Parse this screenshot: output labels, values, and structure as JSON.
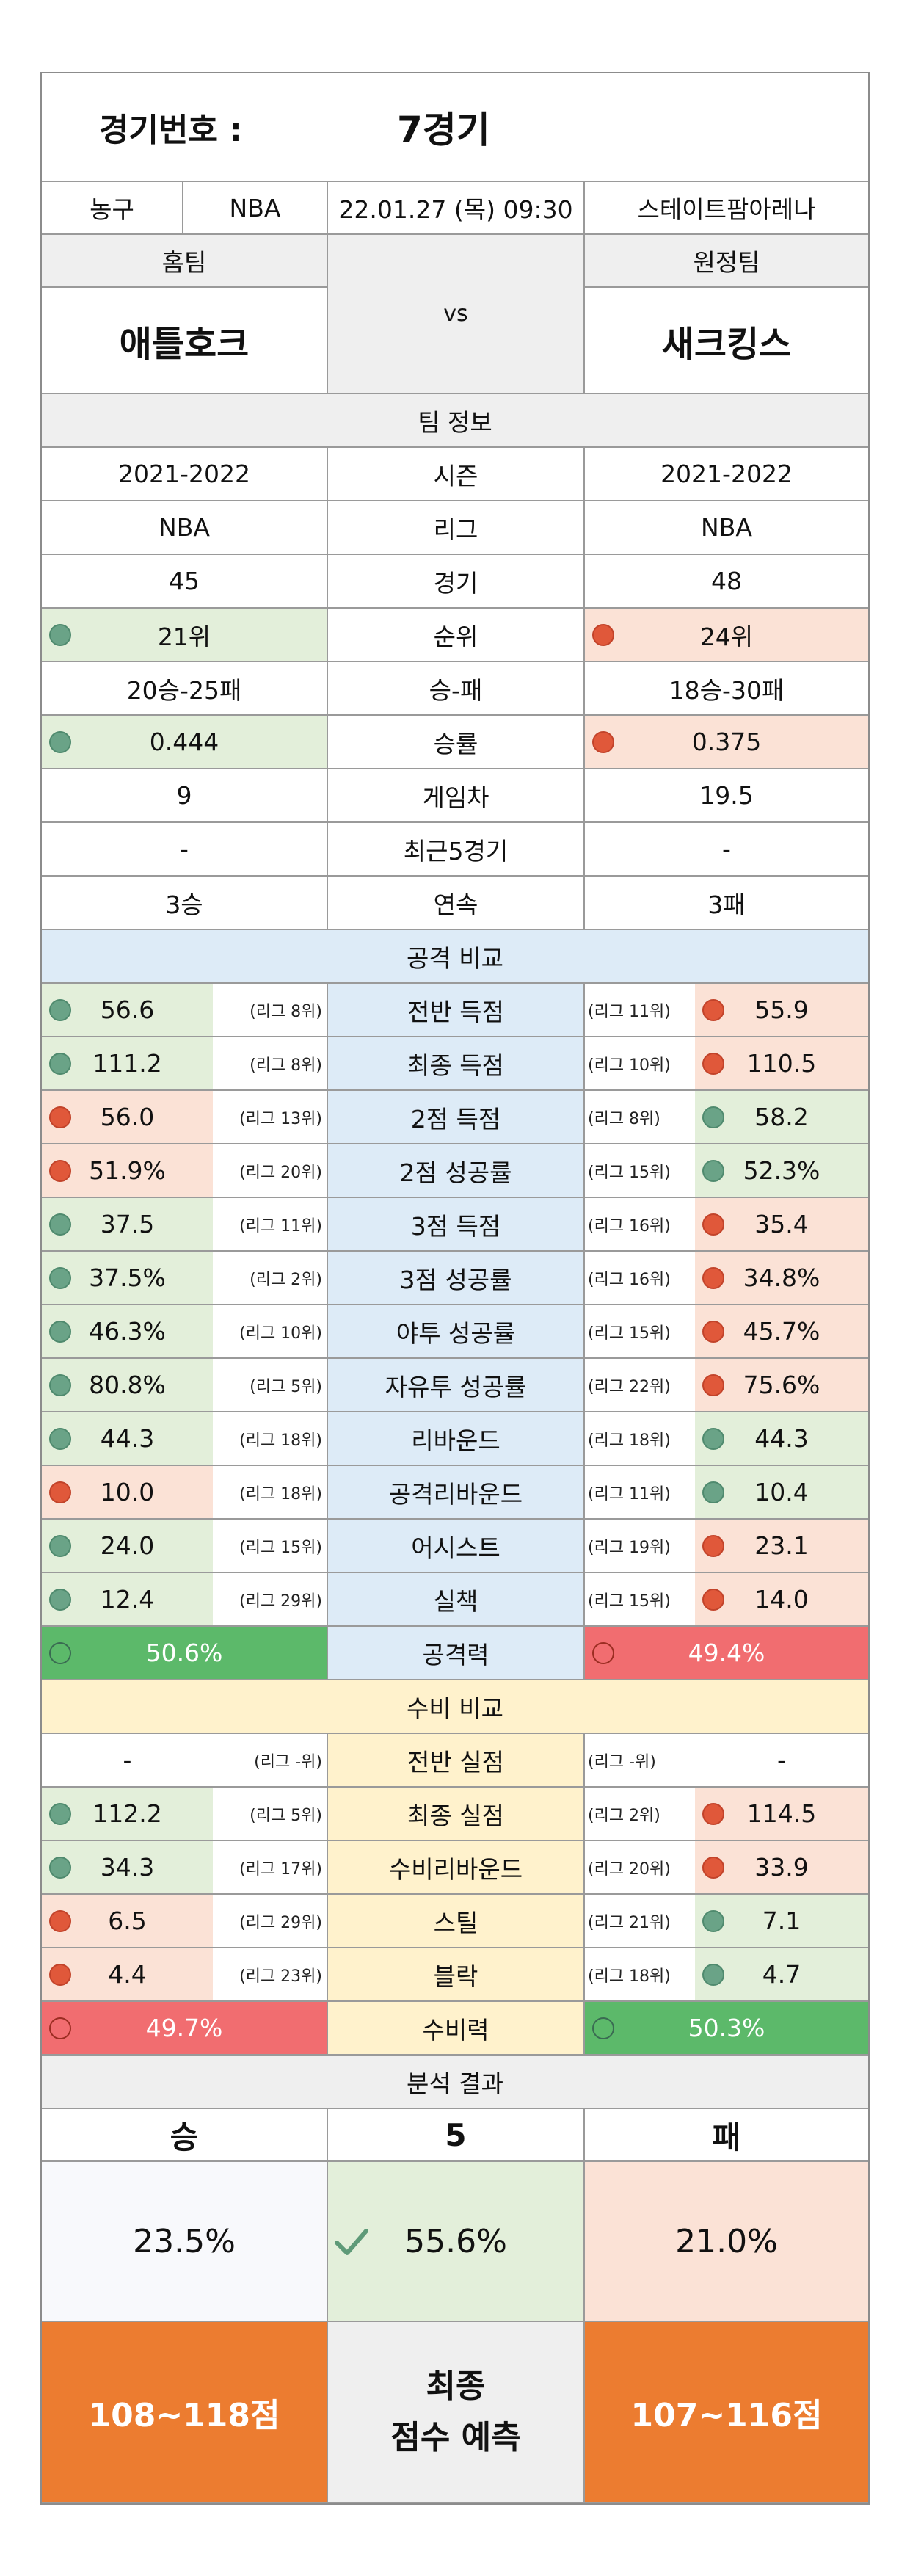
{
  "header": {
    "match_label": "경기번호 :",
    "match_no": "7경기",
    "sport": "농구",
    "league": "NBA",
    "datetime": "22.01.27 (목) 09:30",
    "venue": "스테이트팜아레나"
  },
  "teams": {
    "home_label": "홈팀",
    "away_label": "원정팀",
    "home": "애틀호크",
    "away": "새크킹스",
    "vs": "vs"
  },
  "team_info": {
    "title": "팀 정보",
    "rows": [
      {
        "label": "시즌",
        "home": "2021-2022",
        "away": "2021-2022",
        "mark": "none"
      },
      {
        "label": "리그",
        "home": "NBA",
        "away": "NBA",
        "mark": "none"
      },
      {
        "label": "경기",
        "home": "45",
        "away": "48",
        "mark": "none"
      },
      {
        "label": "순위",
        "home": "21위",
        "away": "24위",
        "mark": "green-red"
      },
      {
        "label": "승-패",
        "home": "20승-25패",
        "away": "18승-30패",
        "mark": "none"
      },
      {
        "label": "승률",
        "home": "0.444",
        "away": "0.375",
        "mark": "green-red"
      },
      {
        "label": "게임차",
        "home": "9",
        "away": "19.5",
        "mark": "none"
      },
      {
        "label": "최근5경기",
        "home": "-",
        "away": "-",
        "mark": "none"
      },
      {
        "label": "연속",
        "home": "3승",
        "away": "3패",
        "mark": "none"
      }
    ]
  },
  "offense": {
    "title": "공격 비교",
    "rows": [
      {
        "label": "전반 득점",
        "home": "56.6",
        "home_rank": "(리그 8위)",
        "away": "55.9",
        "away_rank": "(리그 11위)",
        "home_status": "good",
        "away_status": "bad"
      },
      {
        "label": "최종 득점",
        "home": "111.2",
        "home_rank": "(리그 8위)",
        "away": "110.5",
        "away_rank": "(리그 10위)",
        "home_status": "good",
        "away_status": "bad"
      },
      {
        "label": "2점 득점",
        "home": "56.0",
        "home_rank": "(리그 13위)",
        "away": "58.2",
        "away_rank": "(리그 8위)",
        "home_status": "bad",
        "away_status": "good"
      },
      {
        "label": "2점 성공률",
        "home": "51.9%",
        "home_rank": "(리그 20위)",
        "away": "52.3%",
        "away_rank": "(리그 15위)",
        "home_status": "bad",
        "away_status": "good"
      },
      {
        "label": "3점 득점",
        "home": "37.5",
        "home_rank": "(리그 11위)",
        "away": "35.4",
        "away_rank": "(리그 16위)",
        "home_status": "good",
        "away_status": "bad"
      },
      {
        "label": "3점 성공률",
        "home": "37.5%",
        "home_rank": "(리그 2위)",
        "away": "34.8%",
        "away_rank": "(리그 16위)",
        "home_status": "good",
        "away_status": "bad"
      },
      {
        "label": "야투 성공률",
        "home": "46.3%",
        "home_rank": "(리그 10위)",
        "away": "45.7%",
        "away_rank": "(리그 15위)",
        "home_status": "good",
        "away_status": "bad"
      },
      {
        "label": "자유투 성공률",
        "home": "80.8%",
        "home_rank": "(리그 5위)",
        "away": "75.6%",
        "away_rank": "(리그 22위)",
        "home_status": "good",
        "away_status": "bad"
      },
      {
        "label": "리바운드",
        "home": "44.3",
        "home_rank": "(리그 18위)",
        "away": "44.3",
        "away_rank": "(리그 18위)",
        "home_status": "good",
        "away_status": "good"
      },
      {
        "label": "공격리바운드",
        "home": "10.0",
        "home_rank": "(리그 18위)",
        "away": "10.4",
        "away_rank": "(리그 11위)",
        "home_status": "bad",
        "away_status": "good"
      },
      {
        "label": "어시스트",
        "home": "24.0",
        "home_rank": "(리그 15위)",
        "away": "23.1",
        "away_rank": "(리그 19위)",
        "home_status": "good",
        "away_status": "bad"
      },
      {
        "label": "실책",
        "home": "12.4",
        "home_rank": "(리그 29위)",
        "away": "14.0",
        "away_rank": "(리그 15위)",
        "home_status": "good",
        "away_status": "bad"
      }
    ],
    "power_label": "공격력",
    "home_power": "50.6%",
    "away_power": "49.4%"
  },
  "defense": {
    "title": "수비 비교",
    "rows": [
      {
        "label": "전반 실점",
        "home": "-",
        "home_rank": "(리그 -위)",
        "away": "-",
        "away_rank": "(리그 -위)",
        "home_status": "none",
        "away_status": "none"
      },
      {
        "label": "최종 실점",
        "home": "112.2",
        "home_rank": "(리그 5위)",
        "away": "114.5",
        "away_rank": "(리그 2위)",
        "home_status": "good",
        "away_status": "bad"
      },
      {
        "label": "수비리바운드",
        "home": "34.3",
        "home_rank": "(리그 17위)",
        "away": "33.9",
        "away_rank": "(리그 20위)",
        "home_status": "good",
        "away_status": "bad"
      },
      {
        "label": "스틸",
        "home": "6.5",
        "home_rank": "(리그 29위)",
        "away": "7.1",
        "away_rank": "(리그 21위)",
        "home_status": "bad",
        "away_status": "good"
      },
      {
        "label": "블락",
        "home": "4.4",
        "home_rank": "(리그 23위)",
        "away": "4.7",
        "away_rank": "(리그 18위)",
        "home_status": "bad",
        "away_status": "good"
      }
    ],
    "power_label": "수비력",
    "home_power": "49.7%",
    "away_power": "50.3%"
  },
  "result": {
    "title": "분석 결과",
    "win_label": "승",
    "draw_label": "5",
    "lose_label": "패",
    "win_pct": "23.5%",
    "draw_pct": "55.6%",
    "lose_pct": "21.0%",
    "home_score": "108~118점",
    "away_score": "107~116점",
    "final_line1": "최종",
    "final_line2": "점수 예측"
  },
  "colors": {
    "good": "#6aa387",
    "bad": "#e0583a",
    "orange": "#ec7c30"
  }
}
